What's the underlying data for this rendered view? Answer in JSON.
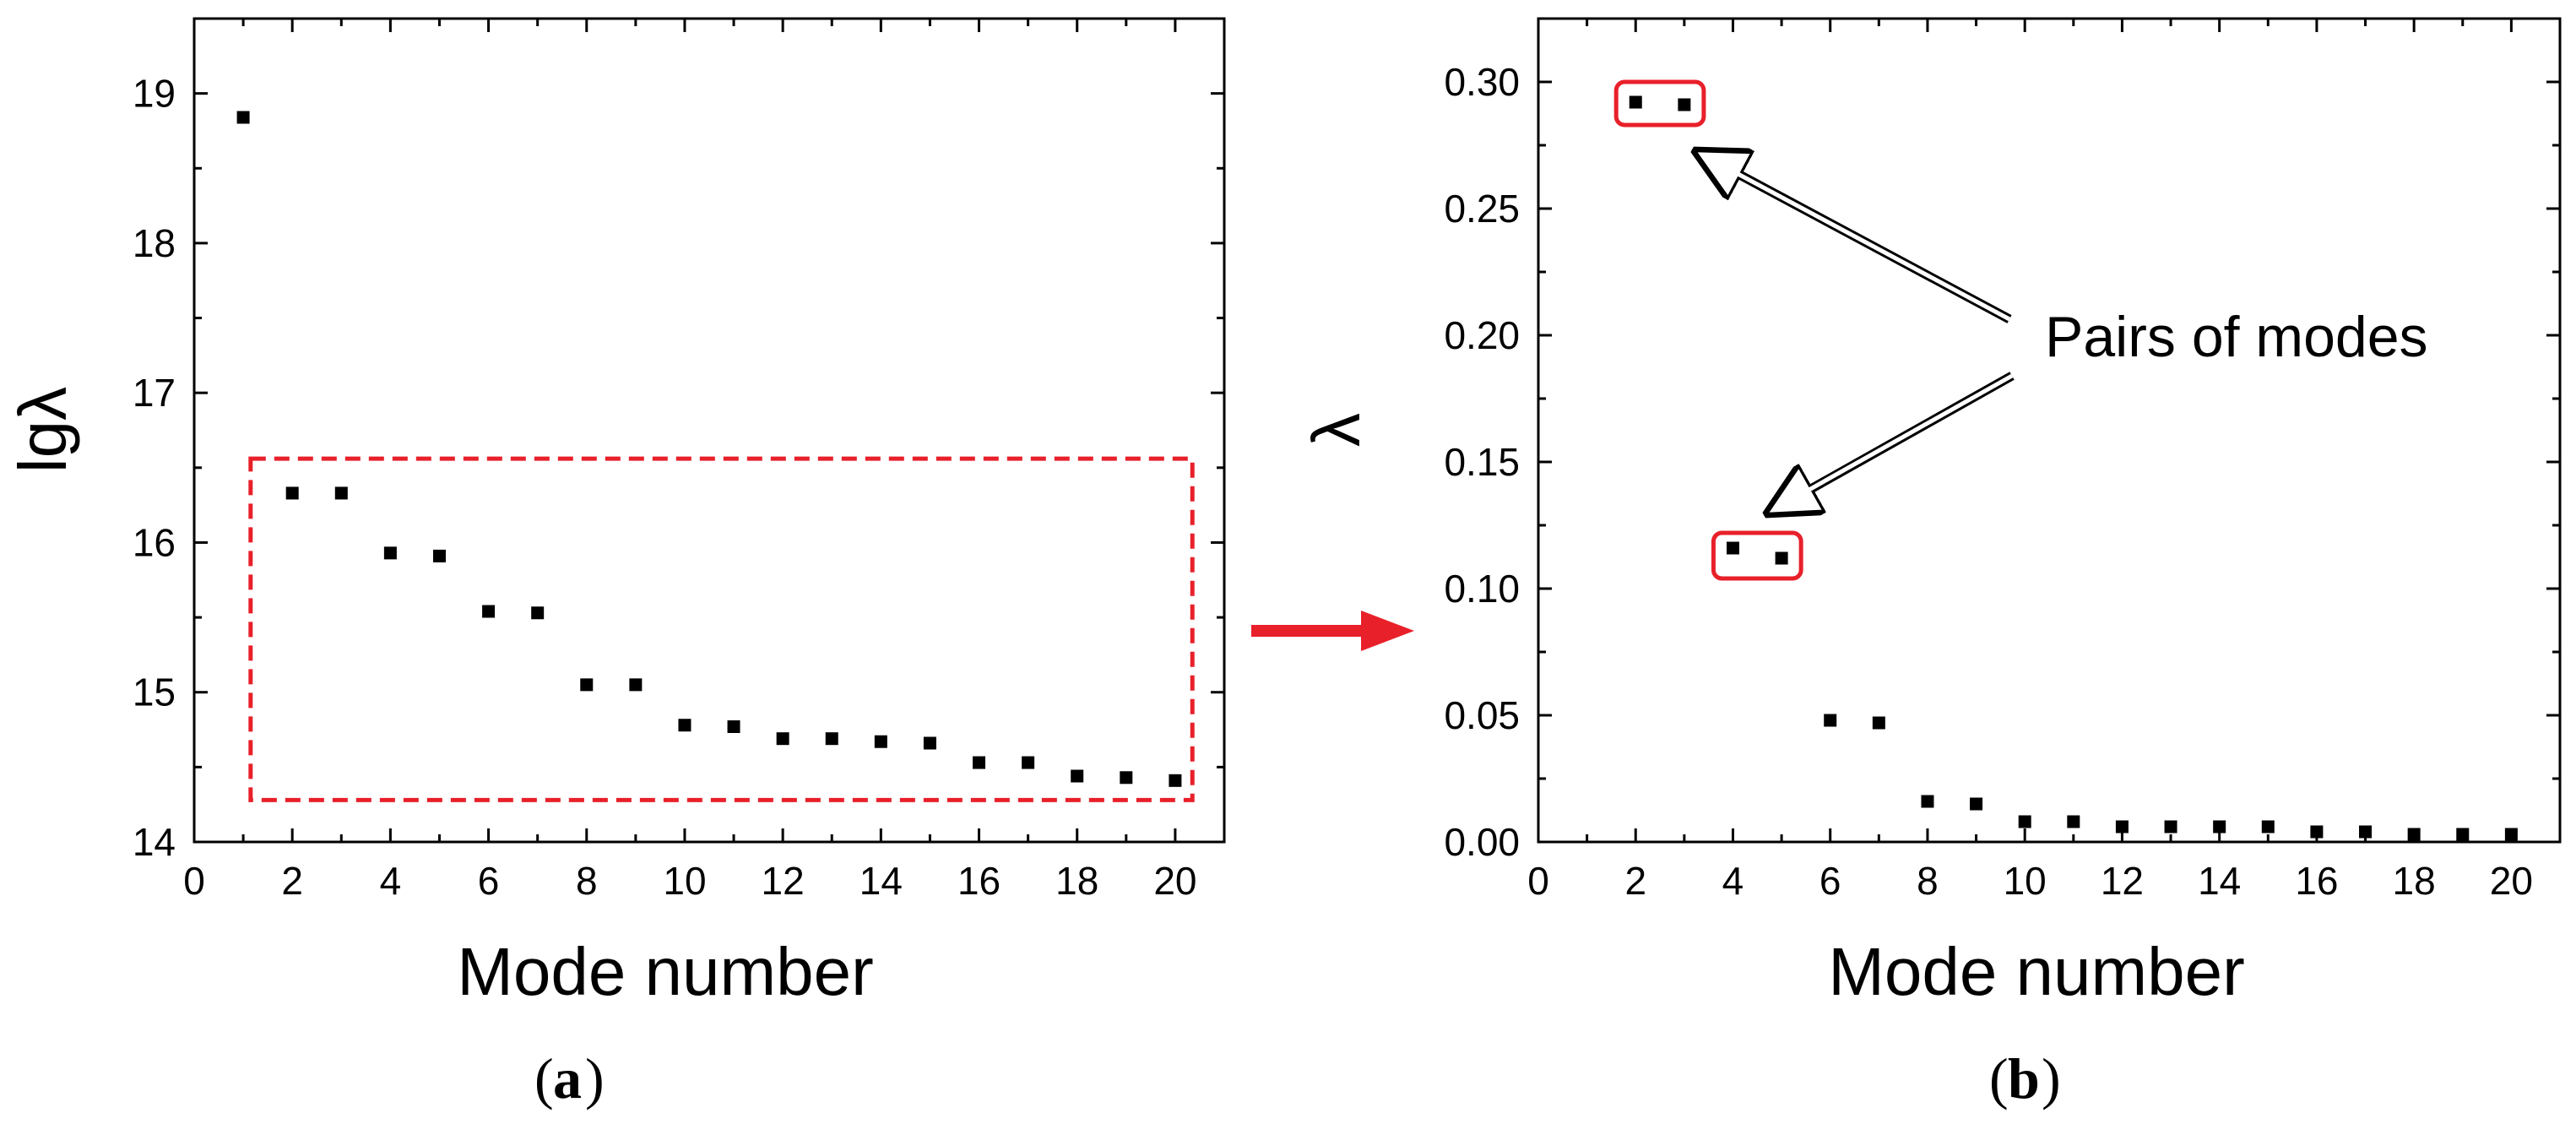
{
  "chart_data": [
    {
      "type": "scatter",
      "panel": "a",
      "caption_label": "a",
      "xlabel": "Mode number",
      "ylabel": "lgλ",
      "xlim": [
        0,
        21
      ],
      "ylim": [
        14,
        19.5
      ],
      "xticks": [
        0,
        2,
        4,
        6,
        8,
        10,
        12,
        14,
        16,
        18,
        20
      ],
      "yticks": [
        14,
        15,
        16,
        17,
        18,
        19
      ],
      "x": [
        1,
        2,
        3,
        4,
        5,
        6,
        7,
        8,
        9,
        10,
        11,
        12,
        13,
        14,
        15,
        16,
        17,
        18,
        19,
        20
      ],
      "y": [
        18.84,
        16.33,
        16.33,
        15.93,
        15.91,
        15.54,
        15.53,
        15.05,
        15.05,
        14.78,
        14.77,
        14.69,
        14.69,
        14.67,
        14.66,
        14.53,
        14.53,
        14.44,
        14.43,
        14.41
      ],
      "annotations": [
        {
          "type": "dashed-box",
          "color": "#e8202a",
          "x_range": [
            1.15,
            20.35
          ],
          "y_range": [
            14.28,
            16.56
          ]
        }
      ]
    },
    {
      "type": "scatter",
      "panel": "b",
      "caption_label": "b",
      "xlabel": "Mode number",
      "ylabel": "λ",
      "xlim": [
        0,
        21
      ],
      "ylim": [
        0,
        0.325
      ],
      "xticks": [
        0,
        2,
        4,
        6,
        8,
        10,
        12,
        14,
        16,
        18,
        20
      ],
      "yticks": [
        0.0,
        0.05,
        0.1,
        0.15,
        0.2,
        0.25,
        0.3
      ],
      "ytick_labels": [
        "0.00",
        "0.05",
        "0.10",
        "0.15",
        "0.20",
        "0.25",
        "0.30"
      ],
      "x": [
        2,
        3,
        4,
        5,
        6,
        7,
        8,
        9,
        10,
        11,
        12,
        13,
        14,
        15,
        16,
        17,
        18,
        19,
        20
      ],
      "y": [
        0.292,
        0.291,
        0.116,
        0.112,
        0.048,
        0.047,
        0.016,
        0.015,
        0.008,
        0.008,
        0.006,
        0.006,
        0.006,
        0.006,
        0.004,
        0.004,
        0.003,
        0.003,
        0.003
      ],
      "annotation_text": "Pairs of modes",
      "annotations": [
        {
          "type": "highlight-box",
          "color": "#e8202a",
          "x_range": [
            1.6,
            3.4
          ],
          "y_range": [
            0.283,
            0.3
          ]
        },
        {
          "type": "highlight-box",
          "color": "#e8202a",
          "x_range": [
            3.6,
            5.4
          ],
          "y_range": [
            0.104,
            0.122
          ]
        }
      ]
    }
  ],
  "connector_arrow": {
    "color": "#e8202a",
    "direction": "right"
  }
}
